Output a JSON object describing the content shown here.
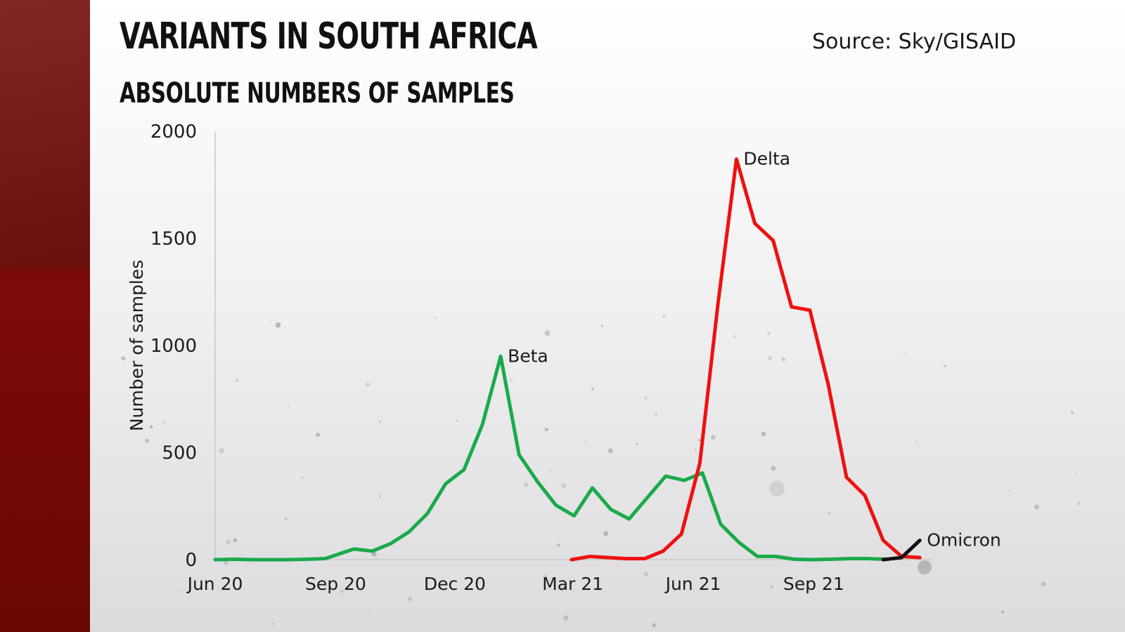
{
  "header": {
    "title": "VARIANTS IN SOUTH AFRICA",
    "subtitle": "ABSOLUTE NUMBERS OF SAMPLES",
    "source": "Source: Sky/GISAID"
  },
  "colors": {
    "beta": "#1aaa4a",
    "delta": "#ee1111",
    "omicron": "#111111",
    "side_panel": "#7a0f0c"
  },
  "chart_data": {
    "type": "line",
    "title": "VARIANTS IN SOUTH AFRICA",
    "subtitle": "ABSOLUTE NUMBERS OF SAMPLES",
    "xlabel": "",
    "ylabel": "Number of samples",
    "ylim": [
      0,
      2000
    ],
    "yticks": [
      0,
      500,
      1000,
      1500,
      2000
    ],
    "ytick_labels": [
      "0",
      "500",
      "1000",
      "1500",
      "2000"
    ],
    "xlim": [
      "2020-06-01",
      "2021-11-30"
    ],
    "xticks": [
      "2020-06-01",
      "2020-09-01",
      "2020-12-01",
      "2021-03-01",
      "2021-06-01",
      "2021-09-01"
    ],
    "xtick_labels": [
      "Jun 20",
      "Sep 20",
      "Dec 20",
      "Mar 21",
      "Jun 21",
      "Sep 21"
    ],
    "grid": false,
    "legend": "none (direct series labels on lines)",
    "series": [
      {
        "name": "Beta",
        "color": "#1aaa4a",
        "points": [
          [
            "2020-06-01",
            0
          ],
          [
            "2020-06-15",
            2
          ],
          [
            "2020-06-29",
            0
          ],
          [
            "2020-07-13",
            0
          ],
          [
            "2020-07-27",
            0
          ],
          [
            "2020-08-10",
            2
          ],
          [
            "2020-08-24",
            5
          ],
          [
            "2020-09-15",
            50
          ],
          [
            "2020-09-29",
            40
          ],
          [
            "2020-10-13",
            75
          ],
          [
            "2020-10-27",
            130
          ],
          [
            "2020-11-10",
            215
          ],
          [
            "2020-11-24",
            355
          ],
          [
            "2020-12-08",
            420
          ],
          [
            "2020-12-22",
            630
          ],
          [
            "2021-01-05",
            950
          ],
          [
            "2021-01-19",
            490
          ],
          [
            "2021-02-02",
            365
          ],
          [
            "2021-02-16",
            255
          ],
          [
            "2021-03-02",
            205
          ],
          [
            "2021-03-16",
            335
          ],
          [
            "2021-03-30",
            235
          ],
          [
            "2021-04-13",
            190
          ],
          [
            "2021-04-27",
            290
          ],
          [
            "2021-05-11",
            390
          ],
          [
            "2021-05-25",
            370
          ],
          [
            "2021-06-08",
            405
          ],
          [
            "2021-06-22",
            165
          ],
          [
            "2021-07-06",
            80
          ],
          [
            "2021-07-20",
            15
          ],
          [
            "2021-08-03",
            15
          ],
          [
            "2021-08-17",
            2
          ],
          [
            "2021-08-31",
            0
          ],
          [
            "2021-09-14",
            2
          ],
          [
            "2021-09-28",
            5
          ],
          [
            "2021-10-12",
            5
          ],
          [
            "2021-10-26",
            2
          ]
        ]
      },
      {
        "name": "Delta",
        "color": "#ee1111",
        "points": [
          [
            "2021-02-28",
            0
          ],
          [
            "2021-03-14",
            15
          ],
          [
            "2021-03-28",
            10
          ],
          [
            "2021-04-11",
            5
          ],
          [
            "2021-04-25",
            5
          ],
          [
            "2021-05-09",
            40
          ],
          [
            "2021-05-23",
            120
          ],
          [
            "2021-06-06",
            450
          ],
          [
            "2021-06-20",
            1200
          ],
          [
            "2021-07-04",
            1870
          ],
          [
            "2021-07-18",
            1570
          ],
          [
            "2021-08-01",
            1490
          ],
          [
            "2021-08-15",
            1180
          ],
          [
            "2021-08-29",
            1165
          ],
          [
            "2021-09-12",
            820
          ],
          [
            "2021-09-26",
            385
          ],
          [
            "2021-10-10",
            300
          ],
          [
            "2021-10-24",
            90
          ],
          [
            "2021-11-07",
            15
          ],
          [
            "2021-11-21",
            10
          ]
        ]
      },
      {
        "name": "Omicron",
        "color": "#111111",
        "points": [
          [
            "2021-10-24",
            0
          ],
          [
            "2021-11-07",
            10
          ],
          [
            "2021-11-21",
            90
          ]
        ]
      }
    ]
  }
}
